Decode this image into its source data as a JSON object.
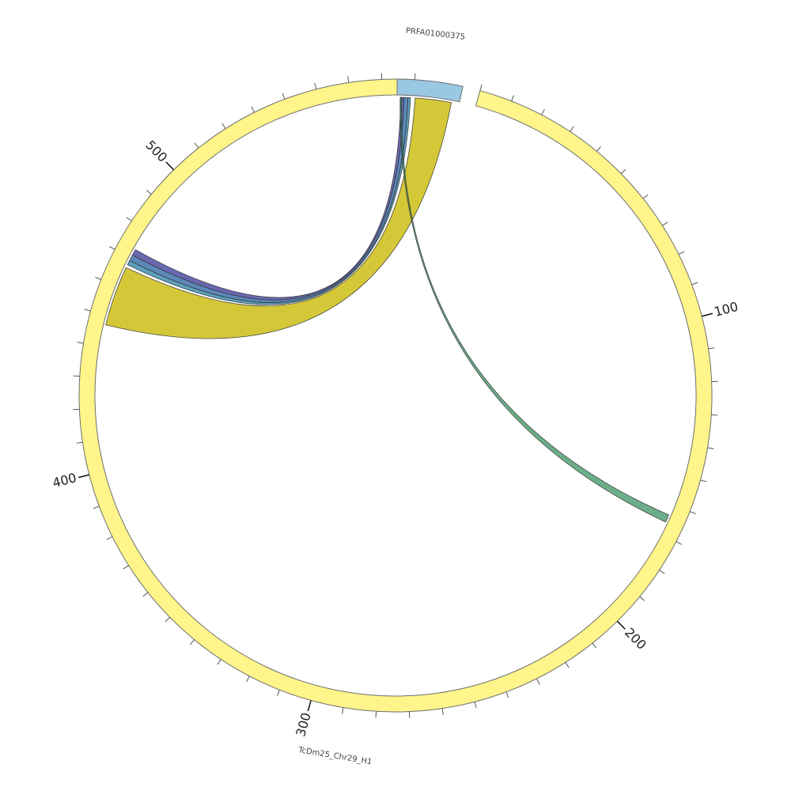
{
  "segments": [
    {
      "id": "chr29",
      "label": "TcDm25_Chr29_H1",
      "length": 580,
      "color": "#fff58a"
    },
    {
      "id": "prfa",
      "label": "PRFA01000375",
      "length": 20,
      "color": "#99c8e3"
    }
  ],
  "ticks": {
    "minor_step": 10,
    "major_labels": [
      "100",
      "200",
      "300",
      "400",
      "500"
    ]
  },
  "links": [
    {
      "from": {
        "seg": "prfa",
        "start": 1.2,
        "end": 2.2
      },
      "to": {
        "seg": "chr29",
        "start": 471,
        "end": 473
      },
      "color": "#5a58a6",
      "opacity": 0.9
    },
    {
      "from": {
        "seg": "prfa",
        "start": 2.2,
        "end": 3.5
      },
      "to": {
        "seg": "chr29",
        "start": 469,
        "end": 471
      },
      "color": "#4a7ab0",
      "opacity": 0.9
    },
    {
      "from": {
        "seg": "prfa",
        "start": 3.5,
        "end": 4.3
      },
      "to": {
        "seg": "chr29",
        "start": 467.5,
        "end": 469
      },
      "color": "#3f8fb3",
      "opacity": 0.85
    },
    {
      "from": {
        "seg": "prfa",
        "start": 5.8,
        "end": 17.5
      },
      "to": {
        "seg": "chr29",
        "start": 447,
        "end": 466.5
      },
      "color": "#c9b800",
      "opacity": 0.78
    },
    {
      "from": {
        "seg": "prfa",
        "start": 1.0,
        "end": 1.5
      },
      "to": {
        "seg": "chr29",
        "start": 163.5,
        "end": 166
      },
      "color": "#2e8b57",
      "opacity": 0.7
    }
  ]
}
